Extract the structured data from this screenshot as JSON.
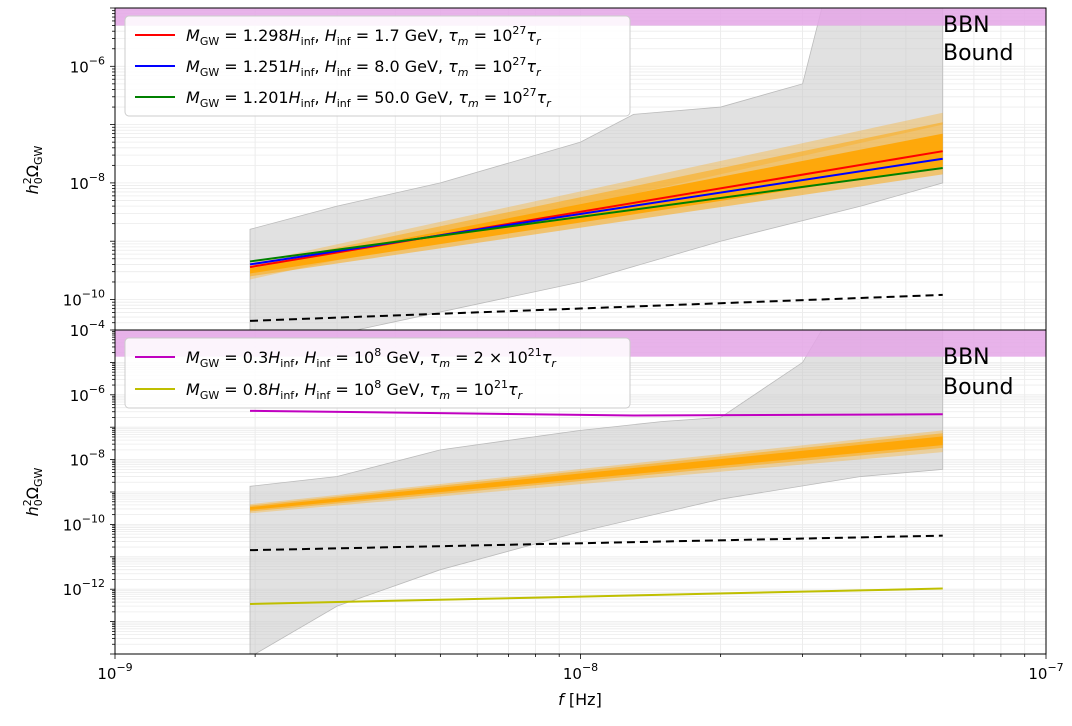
{
  "chart_data": [
    {
      "type": "line",
      "panel": "top",
      "ylabel": "h_0^2 Ω_GW",
      "xlabel": "",
      "xlim": [
        1e-09,
        1e-07
      ],
      "ylim": [
        3e-11,
        1e-05
      ],
      "xscale": "log",
      "yscale": "log",
      "grid": true,
      "legend_position": "top-left",
      "yticks": [
        {
          "value": 1e-06,
          "base": "10",
          "exp": "−6"
        },
        {
          "value": 1e-08,
          "base": "10",
          "exp": "−8"
        },
        {
          "value": 1e-10,
          "base": "10",
          "exp": "−10"
        }
      ],
      "bbn_band": {
        "label_line1": "BBN",
        "label_line2": "Bound",
        "from": 5e-06,
        "to": 1e-05,
        "color": "#e4a6e6"
      },
      "sensitivity_region": {
        "color": "#c8c8c8",
        "upper": [
          [
            1.95e-09,
            1.6e-09
          ],
          [
            3e-09,
            4e-09
          ],
          [
            5e-09,
            1e-08
          ],
          [
            1e-08,
            5e-08
          ],
          [
            1.3e-08,
            1.5e-07
          ],
          [
            2e-08,
            2e-07
          ],
          [
            3e-08,
            5e-07
          ],
          [
            3.3e-08,
            1e-05
          ],
          [
            6e-08,
            1e-05
          ]
        ],
        "lower": [
          [
            1.95e-09,
            3e-11
          ],
          [
            3.3e-09,
            3e-11
          ],
          [
            1e-08,
            2e-10
          ],
          [
            2e-08,
            1e-09
          ],
          [
            4e-08,
            4e-09
          ],
          [
            6e-08,
            1e-08
          ]
        ]
      },
      "signal_band": {
        "color": "#ffa500",
        "x": [
          1.95e-09,
          6e-09
        ],
        "bands": [
          {
            "lo": [
              2.2e-10,
              1e-07
            ],
            "hi": [
              4.2e-10,
              1.6e-07
            ],
            "opacity": 0.3
          },
          {
            "lo": [
              2.5e-10,
              1.4e-08
            ],
            "hi": [
              3.8e-10,
              1.1e-07
            ],
            "opacity": 0.5
          },
          {
            "lo": [
              2.8e-10,
              1.9e-08
            ],
            "hi": [
              3.4e-10,
              7e-08
            ],
            "opacity": 0.9
          }
        ],
        "x_end": 6e-08
      },
      "dashed_line": {
        "color": "#000000",
        "x": [
          1.95e-09,
          6e-08
        ],
        "y": [
          4.3e-11,
          1.2e-10
        ]
      },
      "series": [
        {
          "legend_name": "M_GW = 1.298H_inf, H_inf = 1.7 GeV, τ_m = 10^27 τ_r",
          "color": "#ff0000",
          "x": [
            1.95e-09,
            6e-08
          ],
          "y": [
            3.6e-10,
            3.5e-08
          ]
        },
        {
          "legend_name": "M_GW = 1.251H_inf, H_inf = 8.0 GeV, τ_m = 10^27 τ_r",
          "color": "#0000ff",
          "x": [
            1.95e-09,
            6e-08
          ],
          "y": [
            4e-10,
            2.6e-08
          ]
        },
        {
          "legend_name": "M_GW = 1.201H_inf, H_inf = 50.0 GeV, τ_m = 10^27 τ_r",
          "color": "#008000",
          "x": [
            1.95e-09,
            6e-08
          ],
          "y": [
            4.5e-10,
            1.8e-08
          ]
        }
      ]
    },
    {
      "type": "line",
      "panel": "bottom",
      "ylabel": "h_0^2 Ω_GW",
      "xlabel": "f [Hz]",
      "xlim": [
        1e-09,
        1e-07
      ],
      "ylim": [
        1e-14,
        0.0001
      ],
      "xscale": "log",
      "yscale": "log",
      "grid": true,
      "legend_position": "top-left",
      "xticks": [
        {
          "value": 1e-09,
          "base": "10",
          "exp": "−9"
        },
        {
          "value": 1e-08,
          "base": "10",
          "exp": "−8"
        },
        {
          "value": 1e-07,
          "base": "10",
          "exp": "−7"
        }
      ],
      "yticks": [
        {
          "value": 0.0001,
          "base": "10",
          "exp": "−4"
        },
        {
          "value": 1e-06,
          "base": "10",
          "exp": "−6"
        },
        {
          "value": 1e-08,
          "base": "10",
          "exp": "−8"
        },
        {
          "value": 1e-10,
          "base": "10",
          "exp": "−10"
        },
        {
          "value": 1e-12,
          "base": "10",
          "exp": "−12"
        }
      ],
      "bbn_band": {
        "label_line1": "BBN",
        "label_line2": "Bound",
        "from": 1.5e-05,
        "to": 0.0001,
        "color": "#e4a6e6"
      },
      "sensitivity_region": {
        "color": "#c8c8c8",
        "upper": [
          [
            1.95e-09,
            1.5e-09
          ],
          [
            3e-09,
            3e-09
          ],
          [
            5e-09,
            2e-08
          ],
          [
            1e-08,
            8e-08
          ],
          [
            1.5e-08,
            1.5e-07
          ],
          [
            2e-08,
            2e-07
          ],
          [
            3e-08,
            1e-05
          ],
          [
            3.3e-08,
            0.0001
          ],
          [
            6e-08,
            0.0001
          ]
        ],
        "lower": [
          [
            1.95e-09,
            1e-14
          ],
          [
            2e-09,
            1e-14
          ],
          [
            3e-09,
            3e-13
          ],
          [
            5e-09,
            4e-12
          ],
          [
            1e-08,
            6e-11
          ],
          [
            2e-08,
            6e-10
          ],
          [
            4e-08,
            3e-09
          ],
          [
            6e-08,
            5e-09
          ]
        ]
      },
      "signal_band": {
        "color": "#ffa500",
        "x": [
          1.95e-09,
          6e-08
        ],
        "bands": [
          {
            "lo": [
              2.2e-10,
              1.7e-08
            ],
            "hi": [
              4.2e-10,
              8e-08
            ],
            "opacity": 0.3
          },
          {
            "lo": [
              2.5e-10,
              2.3e-08
            ],
            "hi": [
              3.8e-10,
              6.5e-08
            ],
            "opacity": 0.5
          },
          {
            "lo": [
              2.8e-10,
              2.8e-08
            ],
            "hi": [
              3.4e-10,
              5.2e-08
            ],
            "opacity": 0.9
          }
        ]
      },
      "dashed_line": {
        "color": "#000000",
        "x": [
          1.95e-09,
          6e-08
        ],
        "y": [
          1.6e-11,
          4.5e-11
        ]
      },
      "series": [
        {
          "legend_name": "M_GW = 0.3H_inf, H_inf = 10^8 GeV, τ_m = 2 × 10^21 τ_r",
          "color": "#c000c0",
          "x": [
            1.95e-09,
            1.3e-08,
            6e-08
          ],
          "y": [
            3.2e-07,
            2.3e-07,
            2.5e-07
          ]
        },
        {
          "legend_name": "M_GW = 0.8H_inf, H_inf = 10^8 GeV, τ_m = 10^21 τ_r",
          "color": "#bfbf00",
          "x": [
            1.95e-09,
            6e-08
          ],
          "y": [
            3.5e-13,
            1.05e-12
          ]
        }
      ]
    }
  ]
}
